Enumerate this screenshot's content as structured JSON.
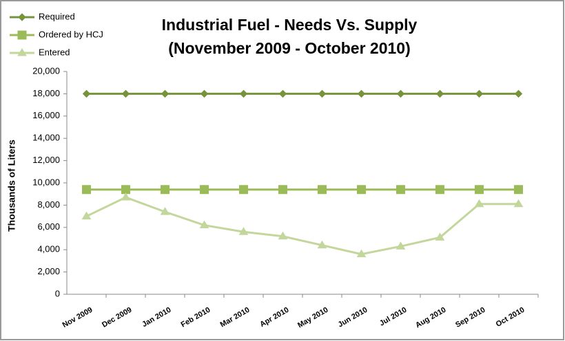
{
  "chart_data": {
    "type": "line",
    "title": "Industrial Fuel - Needs Vs. Supply",
    "subtitle": "(November 2009 - October 2010)",
    "y_label": "Thousands of Liters",
    "categories": [
      "Nov 2009",
      "Dec 2009",
      "Jan 2010",
      "Feb 2010",
      "Mar 2010",
      "Apr 2010",
      "May 2010",
      "Jun 2010",
      "Jul 2010",
      "Aug 2010",
      "Sep 2010",
      "Oct 2010"
    ],
    "series": [
      {
        "name": "Required",
        "color": "#77933c",
        "marker": "diamond",
        "values": [
          18000,
          18000,
          18000,
          18000,
          18000,
          18000,
          18000,
          18000,
          18000,
          18000,
          18000,
          18000
        ]
      },
      {
        "name": "Ordered by HCJ",
        "color": "#9bbb59",
        "marker": "square",
        "values": [
          9400,
          9400,
          9400,
          9400,
          9400,
          9400,
          9400,
          9400,
          9400,
          9400,
          9400,
          9400
        ]
      },
      {
        "name": "Entered",
        "color": "#c3d69b",
        "marker": "triangle",
        "values": [
          7000,
          8700,
          7400,
          6200,
          5600,
          5200,
          4400,
          3600,
          4300,
          5100,
          8100,
          8100
        ]
      }
    ],
    "ylim": [
      0,
      20000
    ],
    "yticks": [
      0,
      {
        "value": 2000,
        "label": "2,000"
      },
      {
        "value": 4000,
        "label": "4,000"
      },
      {
        "value": 6000,
        "label": "6,000"
      },
      {
        "value": 8000,
        "label": "8,000"
      },
      {
        "value": 10000,
        "label": "10,000"
      },
      {
        "value": 12000,
        "label": "12,000"
      },
      {
        "value": 14000,
        "label": "14,000"
      },
      {
        "value": 16000,
        "label": "16,000"
      },
      {
        "value": 18000,
        "label": "18,000"
      },
      {
        "value": 20000,
        "label": "20,000"
      }
    ],
    "legend": "top-left",
    "grid": false
  }
}
